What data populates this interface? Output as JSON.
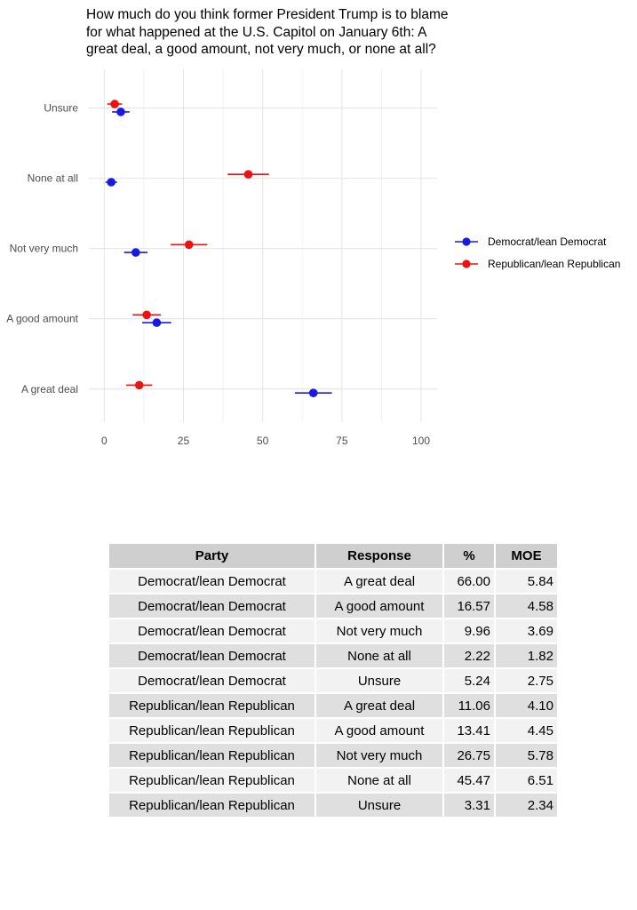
{
  "title": "How much do you think former President Trump is to blame for what happened at the U.S. Capitol on January 6th: A great deal, a good amount, not very much, or none at all?",
  "title_lines": [
    "How much do you think former President Trump is to blame",
    "for what happened at the U.S. Capitol on January 6th: A",
    "great deal, a good amount, not very much, or none at all?"
  ],
  "chart_data": {
    "type": "scatter",
    "subtype": "dot-plot-with-error-bars",
    "orientation": "horizontal",
    "categories": [
      "Unsure",
      "None at all",
      "Not very much",
      "A good amount",
      "A great deal"
    ],
    "x_ticks": [
      "0",
      "25",
      "50",
      "75",
      "100"
    ],
    "x_tick_values": [
      0,
      25,
      50,
      75,
      100
    ],
    "x_minor_ticks": [
      12.5,
      37.5,
      62.5,
      87.5
    ],
    "xlim": [
      0,
      100
    ],
    "xlabel": "",
    "ylabel": "",
    "grid": true,
    "legend_position": "right",
    "colors": {
      "major_grid": "#E5E5E5",
      "minor_grid": "#F0F0F0",
      "axis_text": "#4D4D4D"
    },
    "series": [
      {
        "name": "Democrat/lean Democrat",
        "color": "#1919E6",
        "values": [
          5.24,
          2.22,
          9.96,
          16.57,
          66.0
        ],
        "moe": [
          2.75,
          1.82,
          3.69,
          4.58,
          5.84
        ]
      },
      {
        "name": "Republican/lean Republican",
        "color": "#EE1111",
        "values": [
          3.31,
          45.47,
          26.75,
          13.41,
          11.06
        ],
        "moe": [
          2.34,
          6.51,
          5.78,
          4.45,
          4.1
        ]
      }
    ]
  },
  "table": {
    "headers": [
      "Party",
      "Response",
      "%",
      "MOE"
    ],
    "rows": [
      [
        "Democrat/lean Democrat",
        "A great deal",
        "66.00",
        "5.84"
      ],
      [
        "Democrat/lean Democrat",
        "A good amount",
        "16.57",
        "4.58"
      ],
      [
        "Democrat/lean Democrat",
        "Not very much",
        "9.96",
        "3.69"
      ],
      [
        "Democrat/lean Democrat",
        "None at all",
        "2.22",
        "1.82"
      ],
      [
        "Democrat/lean Democrat",
        "Unsure",
        "5.24",
        "2.75"
      ],
      [
        "Republican/lean Republican",
        "A great deal",
        "11.06",
        "4.10"
      ],
      [
        "Republican/lean Republican",
        "A good amount",
        "13.41",
        "4.45"
      ],
      [
        "Republican/lean Republican",
        "Not very much",
        "26.75",
        "5.78"
      ],
      [
        "Republican/lean Republican",
        "None at all",
        "45.47",
        "6.51"
      ],
      [
        "Republican/lean Republican",
        "Unsure",
        "3.31",
        "2.34"
      ]
    ]
  }
}
